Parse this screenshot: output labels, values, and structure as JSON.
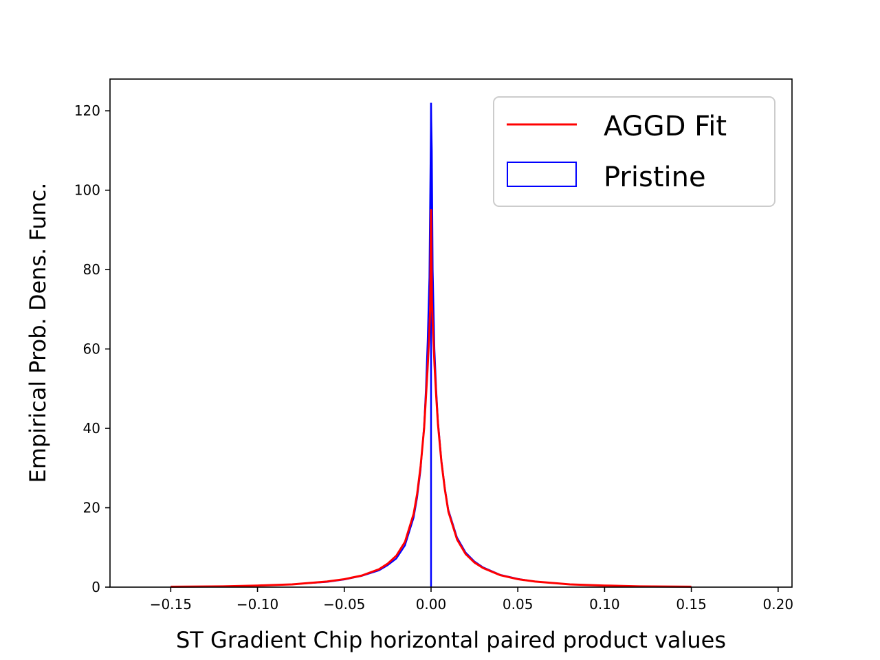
{
  "chart_data": {
    "type": "line",
    "title": "",
    "xlabel": "ST Gradient Chip horizontal paired product values",
    "ylabel": "Empirical Prob. Dens. Func.",
    "xlim": [
      -0.185,
      0.208
    ],
    "ylim": [
      0,
      128
    ],
    "x_ticks": [
      -0.15,
      -0.1,
      -0.05,
      0.0,
      0.05,
      0.1,
      0.15,
      0.2
    ],
    "x_tick_labels": [
      "−0.15",
      "−0.10",
      "−0.05",
      "0.00",
      "0.05",
      "0.10",
      "0.15",
      "0.20"
    ],
    "y_ticks": [
      0,
      20,
      40,
      60,
      80,
      100,
      120
    ],
    "y_tick_labels": [
      "0",
      "20",
      "40",
      "60",
      "80",
      "100",
      "120"
    ],
    "grid": false,
    "legend_position": "top-right",
    "series": [
      {
        "name": "AGGD Fit",
        "kind": "line",
        "color": "#ff0000",
        "x": [
          -0.15,
          -0.12,
          -0.1,
          -0.08,
          -0.06,
          -0.05,
          -0.04,
          -0.03,
          -0.025,
          -0.02,
          -0.015,
          -0.01,
          -0.008,
          -0.006,
          -0.004,
          -0.003,
          -0.002,
          -0.001,
          -0.0005,
          0.0,
          0.0005,
          0.001,
          0.002,
          0.003,
          0.004,
          0.006,
          0.008,
          0.01,
          0.015,
          0.02,
          0.025,
          0.03,
          0.04,
          0.05,
          0.06,
          0.08,
          0.1,
          0.12,
          0.15
        ],
        "y": [
          0.1,
          0.2,
          0.4,
          0.7,
          1.4,
          2.0,
          2.9,
          4.5,
          5.9,
          7.9,
          11.4,
          18.5,
          23.5,
          30.5,
          40.0,
          47.5,
          55.0,
          64.0,
          70.0,
          95.0,
          72.0,
          66.0,
          56.0,
          48.0,
          41.0,
          31.5,
          24.5,
          19.0,
          12.0,
          8.3,
          6.2,
          4.8,
          3.0,
          2.0,
          1.4,
          0.7,
          0.4,
          0.2,
          0.1
        ]
      },
      {
        "name": "Pristine",
        "kind": "step-histogram",
        "color": "#0000ff",
        "x": [
          -0.15,
          -0.12,
          -0.1,
          -0.08,
          -0.06,
          -0.05,
          -0.04,
          -0.03,
          -0.025,
          -0.02,
          -0.015,
          -0.01,
          -0.008,
          -0.006,
          -0.004,
          -0.003,
          -0.002,
          -0.001,
          -0.0005,
          0.0,
          0.0005,
          0.001,
          0.002,
          0.003,
          0.004,
          0.006,
          0.008,
          0.01,
          0.015,
          0.02,
          0.025,
          0.03,
          0.04,
          0.05,
          0.06,
          0.08,
          0.1,
          0.12,
          0.15
        ],
        "y": [
          0.1,
          0.2,
          0.4,
          0.7,
          1.3,
          1.9,
          2.8,
          4.2,
          5.5,
          7.2,
          10.5,
          17.5,
          22.5,
          29.5,
          41.0,
          50.0,
          62.0,
          78.0,
          100.0,
          122.0,
          110.0,
          80.0,
          60.0,
          50.0,
          42.0,
          32.0,
          25.0,
          19.5,
          12.5,
          8.7,
          6.5,
          5.0,
          3.1,
          2.1,
          1.4,
          0.7,
          0.4,
          0.2,
          0.1
        ]
      }
    ]
  }
}
